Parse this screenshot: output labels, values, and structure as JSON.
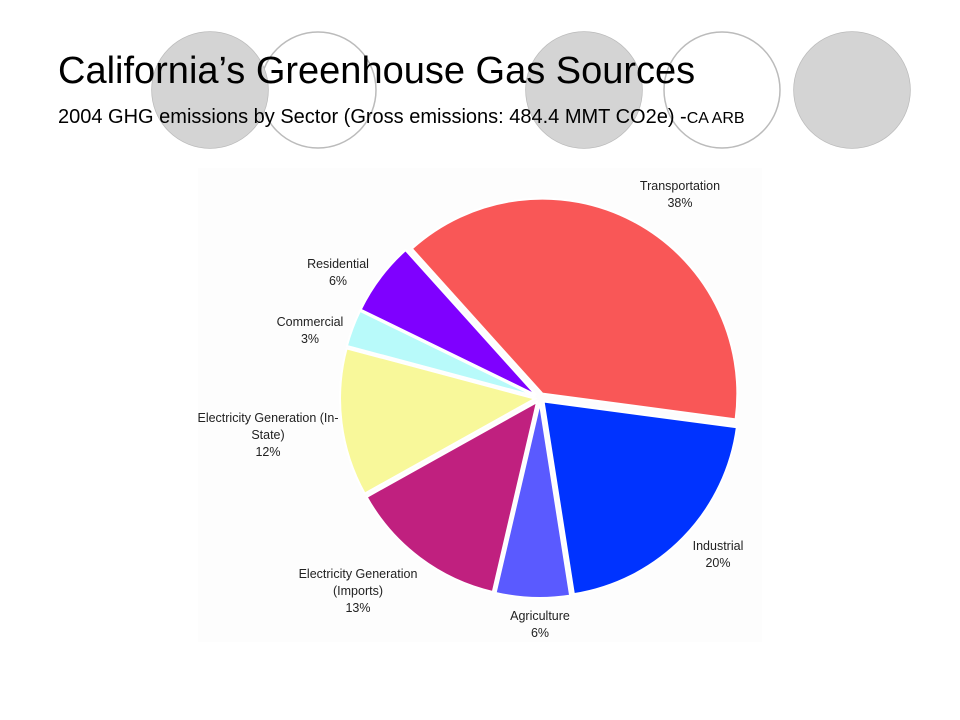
{
  "chart_data": {
    "type": "pie",
    "title": "California’s Greenhouse Gas Sources",
    "subtitle": "2004 GHG emissions by Sector (Gross emissions: 484.4 MMT CO2e) -",
    "source": "CA ARB",
    "categories": [
      "Transportation",
      "Industrial",
      "Agriculture",
      "Electricity Generation (Imports)",
      "Electricity Generation (In-State)",
      "Commercial",
      "Residential"
    ],
    "values": [
      38,
      20,
      6,
      13,
      12,
      3,
      6
    ],
    "value_labels": [
      "38%",
      "20%",
      "6%",
      "13%",
      "12%",
      "3%",
      "6%"
    ],
    "colors": [
      "#f95757",
      "#0033ff",
      "#5a5aff",
      "#c0207f",
      "#f8f89a",
      "#b8fafa",
      "#7f00ff"
    ]
  }
}
